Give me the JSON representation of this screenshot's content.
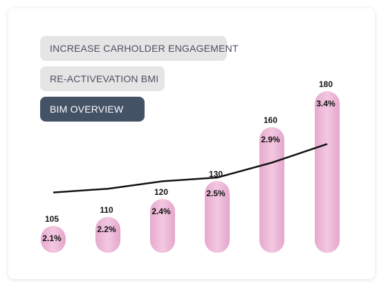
{
  "tabs": [
    {
      "label": "INCREASE CARHOLDER ENGAGEMENT",
      "active": false
    },
    {
      "label": "RE-ACTIVEVATION BMI",
      "active": false
    },
    {
      "label": "BIM OVERVIEW",
      "active": true
    }
  ],
  "colors": {
    "bar": "#efbddb",
    "active_tab": "#445266",
    "inactive_tab": "#e5e5e5",
    "line": "#111111"
  },
  "chart_data": {
    "type": "bar",
    "categories": [
      "",
      "",
      "",
      "",
      "",
      ""
    ],
    "values": [
      105,
      110,
      120,
      130,
      160,
      180
    ],
    "value_labels": [
      "105",
      "110",
      "120",
      "130",
      "160",
      "180"
    ],
    "series": [
      {
        "values": [
          2.1,
          2.2,
          2.4,
          2.5,
          2.9,
          3.4
        ],
        "labels": [
          "2.1%",
          "2.2%",
          "2.4%",
          "2.5%",
          "2.9%",
          "3.4%"
        ],
        "type": "line"
      }
    ],
    "ylim": [
      0,
      200
    ],
    "grid": false
  }
}
